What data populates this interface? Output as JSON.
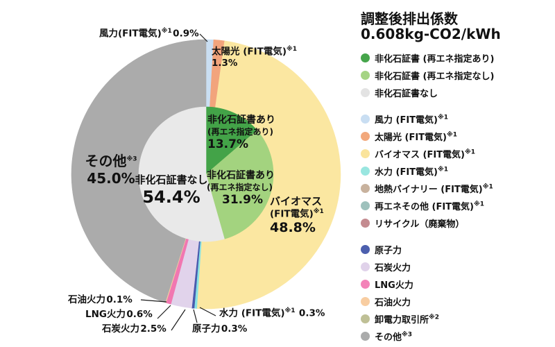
{
  "title": {
    "line1": "調整後排出係数",
    "line2": "0.608kg-CO2/kWh"
  },
  "chart_data": {
    "type": "pie",
    "title": "調整後排出係数 0.608kg-CO2/kWh",
    "unit": "%",
    "start_angle_deg": 0,
    "direction": "clockwise",
    "rings": [
      {
        "name": "outer-breakdown",
        "radius_px": 194,
        "slices": [
          {
            "label": "風力 (FIT電気)※1",
            "value": 0.9,
            "color": "#c9def2"
          },
          {
            "label": "太陽光 (FIT電気)※1",
            "value": 1.3,
            "color": "#f2a47c"
          },
          {
            "label": "バイオマス (FIT電気)※1",
            "value": 48.8,
            "color": "#fbe7a1"
          },
          {
            "label": "水力 (FIT電気)※1",
            "value": 0.3,
            "color": "#89e2e4"
          },
          {
            "label": "原子力",
            "value": 0.3,
            "color": "#4a5bad"
          },
          {
            "label": "石炭火力",
            "value": 2.5,
            "color": "#e1d3eb"
          },
          {
            "label": "LNG火力",
            "value": 0.6,
            "color": "#f177b1"
          },
          {
            "label": "石油火力",
            "value": 0.1,
            "color": "#f8cda1"
          },
          {
            "label": "その他※3",
            "value": 45.0,
            "color": "#ababab"
          }
        ]
      },
      {
        "name": "inner-certificates",
        "radius_px": 97,
        "slices": [
          {
            "label": "非化石証書あり（再エネ指定あり）",
            "value": 13.7,
            "color": "#43a348"
          },
          {
            "label": "非化石証書あり（再エネ指定なし）",
            "value": 31.9,
            "color": "#a3d37f"
          },
          {
            "label": "非化石証書なし",
            "value": 54.4,
            "color": "#e9e9e9"
          }
        ]
      }
    ]
  },
  "labels": {
    "wind": {
      "name": "風力(FIT電気)",
      "sup": "※1",
      "pct": "0.9%"
    },
    "solar": {
      "name": "太陽光 (FIT電気)",
      "sup": "※1",
      "pct": "1.3%"
    },
    "biomass": {
      "name": "バイオマス",
      "name2": "(FIT電気)",
      "sup": "※1",
      "pct": "48.8%"
    },
    "hydro": {
      "name": "水力 (FIT電気)",
      "sup": "※1",
      "pct": "0.3%"
    },
    "nuclear": {
      "name": "原子力",
      "pct": "0.3%"
    },
    "coal": {
      "name": "石炭火力",
      "pct": "2.5%"
    },
    "lng": {
      "name": "LNG火力",
      "pct": "0.6%"
    },
    "oil": {
      "name": "石油火力",
      "pct": "0.1%"
    },
    "other": {
      "name": "その他",
      "sup": "※3",
      "pct": "45.0%"
    },
    "center": {
      "name": "非化石証書なし",
      "pct": "54.4%"
    },
    "cert_a": {
      "name": "非化石証書あり",
      "name2": "(再エネ指定あり)",
      "pct": "13.7%"
    },
    "cert_b": {
      "name": "非化石証書あり",
      "name2": "(再エネ指定なし)",
      "pct": "31.9%"
    }
  },
  "legend": {
    "groups": [
      {
        "items": [
          {
            "label": "非化石証書 (再エネ指定あり)",
            "sup": "",
            "color": "#46a54b"
          },
          {
            "label": "非化石証書 (再エネ指定なし)",
            "sup": "",
            "color": "#a5d484"
          },
          {
            "label": "非化石証書なし",
            "sup": "",
            "color": "#e3e3e3"
          }
        ]
      },
      {
        "items": [
          {
            "label": "風力 (FIT電気)",
            "sup": "※1",
            "color": "#c9def2"
          },
          {
            "label": "太陽光 (FIT電気)",
            "sup": "※1",
            "color": "#f2a87c"
          },
          {
            "label": "バイオマス (FIT電気)",
            "sup": "※1",
            "color": "#fae49c"
          },
          {
            "label": "水力 (FIT電気)",
            "sup": "※1",
            "color": "#99e6e0"
          },
          {
            "label": "地熱バイナリー (FIT電気)",
            "sup": "※1",
            "color": "#c8b29e"
          },
          {
            "label": "再エネその他 (FIT電気)",
            "sup": "※1",
            "color": "#9ec1bc"
          },
          {
            "label": "リサイクル（廃棄物）",
            "sup": "",
            "color": "#c48b90"
          }
        ]
      },
      {
        "items": [
          {
            "label": "原子力",
            "sup": "",
            "color": "#4c5fae"
          },
          {
            "label": "石炭火力",
            "sup": "",
            "color": "#e0d2ea"
          },
          {
            "label": "LNG火力",
            "sup": "",
            "color": "#f383b8"
          },
          {
            "label": "石油火力",
            "sup": "",
            "color": "#f8cda1"
          },
          {
            "label": "卸電力取引所",
            "sup": "※2",
            "color": "#bfc096"
          },
          {
            "label": "その他",
            "sup": "※3",
            "color": "#aaabab"
          }
        ]
      }
    ]
  }
}
